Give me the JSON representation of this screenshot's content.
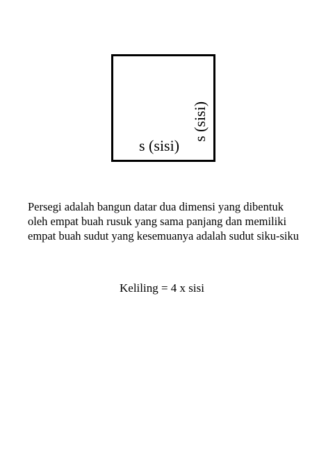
{
  "diagram": {
    "side_label_bottom": "s (sisi)",
    "side_label_right": "s (sisi)"
  },
  "description": {
    "lines": [
      "Persegi adalah bangun datar dua dimensi yang dibentuk",
      "oleh empat buah rusuk yang sama panjang dan memiliki",
      "empat buah sudut yang kesemuanya adalah sudut siku-siku"
    ]
  },
  "formula": "Keliling = 4 x sisi",
  "colors": {
    "stroke": "#000000",
    "background": "#ffffff"
  }
}
